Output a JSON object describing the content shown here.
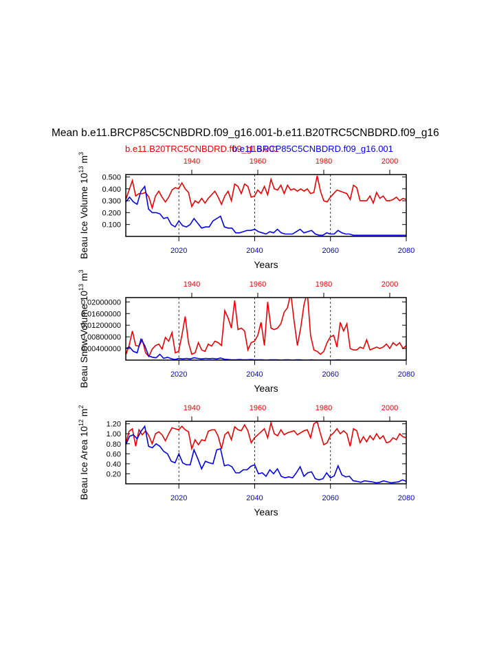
{
  "page": {
    "title": "Mean b.e11.BRCP85C5CNBDRD.f09_g16.001-b.e11.B20TRC5CNBDRD.f09_g16",
    "legend_red": "b.e11.B20TRC5CNBDRD.f09_g16.001",
    "legend_blue": "b.e11.BRCP85C5CNBDRD.f09_g16.001",
    "red_color": "#ee0000",
    "blue_color": "#0000ee"
  },
  "chart_data": [
    {
      "type": "line",
      "ylabel": "Beau Ice Volume 10",
      "ylabel_exp": "13",
      "ylabel_unit": " m",
      "ylabel_unit_exp": "3",
      "xlabel": "Years",
      "ylim": [
        0.0,
        0.52
      ],
      "yticks": [
        0.1,
        0.2,
        0.3,
        0.4,
        0.5
      ],
      "ytick_labels": [
        "0.100",
        "0.200",
        "0.300",
        "0.400",
        "0.500"
      ],
      "bottom_axis": {
        "range": [
          2006,
          2080
        ],
        "ticks": [
          2020,
          2040,
          2060,
          2080
        ],
        "labels": [
          "2020",
          "2040",
          "2060",
          "2080"
        ]
      },
      "top_axis": {
        "range": [
          1920,
          2005
        ],
        "ticks": [
          1940,
          1960,
          1980,
          2000
        ],
        "labels": [
          "1940",
          "1960",
          "1980",
          "2000"
        ]
      },
      "vlines": [
        2020,
        2040,
        2060
      ],
      "series": [
        {
          "name": "b.e11.B20TRC5CNBDRD.f09_g16.001",
          "color": "#ee0000",
          "x_start": 1920,
          "values": [
            0.31,
            0.39,
            0.47,
            0.34,
            0.36,
            0.36,
            0.37,
            0.33,
            0.24,
            0.34,
            0.38,
            0.33,
            0.29,
            0.33,
            0.39,
            0.41,
            0.4,
            0.45,
            0.4,
            0.37,
            0.25,
            0.3,
            0.28,
            0.32,
            0.28,
            0.32,
            0.35,
            0.38,
            0.33,
            0.27,
            0.34,
            0.38,
            0.3,
            0.44,
            0.42,
            0.36,
            0.44,
            0.42,
            0.33,
            0.34,
            0.39,
            0.36,
            0.42,
            0.35,
            0.48,
            0.4,
            0.39,
            0.43,
            0.36,
            0.43,
            0.39,
            0.4,
            0.38,
            0.4,
            0.38,
            0.4,
            0.36,
            0.37,
            0.51,
            0.38,
            0.3,
            0.29,
            0.33,
            0.36,
            0.39,
            0.38,
            0.37,
            0.36,
            0.31,
            0.43,
            0.41,
            0.3,
            0.3,
            0.3,
            0.34,
            0.28,
            0.37,
            0.32,
            0.34,
            0.3,
            0.3,
            0.31,
            0.33,
            0.3,
            0.32,
            0.31
          ]
        },
        {
          "name": "b.e11.BRCP85C5CNBDRD.f09_g16.001",
          "color": "#0000ee",
          "x_start": 2006,
          "values": [
            0.29,
            0.33,
            0.29,
            0.27,
            0.38,
            0.42,
            0.23,
            0.2,
            0.2,
            0.19,
            0.15,
            0.16,
            0.1,
            0.08,
            0.13,
            0.09,
            0.08,
            0.1,
            0.15,
            0.11,
            0.07,
            0.08,
            0.08,
            0.13,
            0.15,
            0.17,
            0.08,
            0.07,
            0.07,
            0.03,
            0.03,
            0.04,
            0.05,
            0.05,
            0.06,
            0.04,
            0.03,
            0.02,
            0.04,
            0.03,
            0.06,
            0.03,
            0.02,
            0.02,
            0.02,
            0.04,
            0.06,
            0.03,
            0.04,
            0.05,
            0.02,
            0.01,
            0.01,
            0.03,
            0.02,
            0.02,
            0.05,
            0.03,
            0.02,
            0.02,
            0.01,
            0.01,
            0.01,
            0.01,
            0.01,
            0.01,
            0.01,
            0.01,
            0.01,
            0.01,
            0.01,
            0.01,
            0.01,
            0.01,
            0.01
          ]
        }
      ]
    },
    {
      "type": "line",
      "ylabel": "Beau Snow Volume 10",
      "ylabel_exp": "13",
      "ylabel_unit": " m",
      "ylabel_unit_exp": "3",
      "xlabel": "Years",
      "ylim": [
        0.0,
        0.0215
      ],
      "yticks": [
        0.004,
        0.008,
        0.012,
        0.016,
        0.02
      ],
      "ytick_labels": [
        "0.00400000",
        "0.00800000",
        "0.01200000",
        "0.01600000",
        "0.02000000"
      ],
      "bottom_axis": {
        "range": [
          2006,
          2080
        ],
        "ticks": [
          2020,
          2040,
          2060,
          2080
        ],
        "labels": [
          "2020",
          "2040",
          "2060",
          "2080"
        ]
      },
      "top_axis": {
        "range": [
          1920,
          2005
        ],
        "ticks": [
          1940,
          1960,
          1980,
          2000
        ],
        "labels": [
          "1940",
          "1960",
          "1980",
          "2000"
        ]
      },
      "vlines": [
        2020,
        2040,
        2060
      ],
      "series": [
        {
          "name": "b.e11.B20TRC5CNBDRD.f09_g16.001",
          "color": "#ee0000",
          "x_start": 1920,
          "values": [
            0.0018,
            0.005,
            0.01,
            0.005,
            0.0048,
            0.007,
            0.0025,
            0.0012,
            0.0038,
            0.005,
            0.0055,
            0.0038,
            0.0078,
            0.0065,
            0.0095,
            0.0025,
            0.003,
            0.0085,
            0.015,
            0.006,
            0.002,
            0.0025,
            0.006,
            0.0035,
            0.003,
            0.0055,
            0.0048,
            0.0065,
            0.006,
            0.005,
            0.017,
            0.0145,
            0.011,
            0.0205,
            0.0105,
            0.011,
            0.01,
            0.0035,
            0.006,
            0.0065,
            0.0085,
            0.013,
            0.005,
            0.02,
            0.011,
            0.0105,
            0.011,
            0.0125,
            0.0165,
            0.018,
            0.023,
            0.0135,
            0.005,
            0.011,
            0.019,
            0.0235,
            0.0085,
            0.0035,
            0.003,
            0.002,
            0.003,
            0.006,
            0.008,
            0.0085,
            0.0045,
            0.013,
            0.01,
            0.0125,
            0.004,
            0.0035,
            0.0035,
            0.0045,
            0.004,
            0.007,
            0.0035,
            0.004,
            0.0045,
            0.004,
            0.0045,
            0.0055,
            0.004,
            0.006,
            0.005,
            0.006,
            0.004,
            0.005
          ]
        },
        {
          "name": "b.e11.BRCP85C5CNBDRD.f09_g16.001",
          "color": "#0000ee",
          "x_start": 2006,
          "values": [
            0.004,
            0.0045,
            0.003,
            0.0025,
            0.0072,
            0.005,
            0.0015,
            0.001,
            0.0008,
            0.002,
            0.0006,
            0.001,
            0.0005,
            0.0002,
            0.0006,
            0.0004,
            0.0006,
            0.0004,
            0.0008,
            0.0006,
            0.0004,
            0.0006,
            0.0005,
            0.0006,
            0.0004,
            0.0007,
            0.0003,
            0.0002,
            0.0001,
            0.0001,
            0.0002,
            0.0001,
            0.0001,
            0.0002,
            0.0001,
            0.0001,
            0.0001,
            0.0,
            0.0001,
            0.0001,
            0.0001,
            0.0,
            0.0001,
            0.0001,
            0.0,
            0.0001,
            0.0001,
            0.0,
            0.0,
            0.0001,
            0.0,
            0.0,
            0.0,
            0.0,
            0.0,
            0.0,
            0.0001,
            0.0,
            0.0,
            0.0,
            0.0,
            0.0,
            0.0,
            0.0,
            0.0,
            0.0,
            0.0,
            0.0,
            0.0,
            0.0,
            0.0,
            0.0,
            0.0,
            0.0,
            0.0
          ]
        }
      ]
    },
    {
      "type": "line",
      "ylabel": "Beau Ice Area 10",
      "ylabel_exp": "12",
      "ylabel_unit": " m",
      "ylabel_unit_exp": "2",
      "xlabel": "Years",
      "ylim": [
        0.0,
        1.25
      ],
      "yticks": [
        0.2,
        0.4,
        0.6,
        0.8,
        1.0,
        1.2
      ],
      "ytick_labels": [
        "0.20",
        "0.40",
        "0.60",
        "0.80",
        "1.00",
        "1.20"
      ],
      "bottom_axis": {
        "range": [
          2006,
          2080
        ],
        "ticks": [
          2020,
          2040,
          2060,
          2080
        ],
        "labels": [
          "2020",
          "2040",
          "2060",
          "2080"
        ]
      },
      "top_axis": {
        "range": [
          1920,
          2005
        ],
        "ticks": [
          1940,
          1960,
          1980,
          2000
        ],
        "labels": [
          "1940",
          "1960",
          "1980",
          "2000"
        ]
      },
      "vlines": [
        2020,
        2040,
        2060
      ],
      "series": [
        {
          "name": "b.e11.B20TRC5CNBDRD.f09_g16.001",
          "color": "#ee0000",
          "x_start": 1920,
          "values": [
            0.8,
            1.05,
            1.1,
            0.75,
            1.08,
            0.98,
            1.06,
            0.96,
            0.8,
            1.0,
            1.04,
            0.98,
            0.86,
            1.0,
            1.12,
            1.1,
            1.08,
            1.15,
            1.08,
            1.04,
            0.7,
            0.88,
            0.78,
            0.88,
            0.86,
            1.05,
            1.08,
            1.08,
            0.95,
            0.7,
            0.98,
            1.04,
            0.88,
            1.14,
            1.08,
            1.06,
            1.18,
            1.06,
            0.82,
            0.92,
            0.98,
            1.04,
            1.1,
            0.92,
            1.22,
            1.0,
            0.96,
            1.08,
            0.98,
            1.02,
            1.04,
            1.06,
            0.98,
            1.02,
            1.06,
            1.08,
            0.92,
            1.2,
            1.24,
            1.0,
            0.78,
            0.82,
            0.96,
            1.02,
            1.1,
            1.0,
            1.06,
            1.0,
            0.75,
            1.1,
            1.06,
            0.82,
            0.94,
            0.84,
            0.96,
            0.88,
            1.0,
            0.9,
            0.96,
            0.82,
            0.84,
            0.92,
            0.88,
            1.0,
            0.94,
            0.92
          ]
        },
        {
          "name": "b.e11.BRCP85C5CNBDRD.f09_g16.001",
          "color": "#0000ee",
          "x_start": 2006,
          "values": [
            0.78,
            0.95,
            0.98,
            0.9,
            1.05,
            1.15,
            0.75,
            0.72,
            0.8,
            0.75,
            0.65,
            0.6,
            0.45,
            0.42,
            0.6,
            0.42,
            0.38,
            0.38,
            0.68,
            0.5,
            0.3,
            0.45,
            0.42,
            0.4,
            0.68,
            0.7,
            0.36,
            0.38,
            0.34,
            0.22,
            0.22,
            0.28,
            0.28,
            0.35,
            0.38,
            0.2,
            0.22,
            0.15,
            0.28,
            0.2,
            0.3,
            0.15,
            0.12,
            0.14,
            0.12,
            0.22,
            0.34,
            0.15,
            0.22,
            0.24,
            0.1,
            0.08,
            0.1,
            0.22,
            0.12,
            0.16,
            0.36,
            0.18,
            0.14,
            0.15,
            0.06,
            0.05,
            0.03,
            0.06,
            0.05,
            0.04,
            0.02,
            0.03,
            0.06,
            0.04,
            0.02,
            0.03,
            0.04,
            0.08,
            0.05
          ]
        }
      ]
    }
  ]
}
